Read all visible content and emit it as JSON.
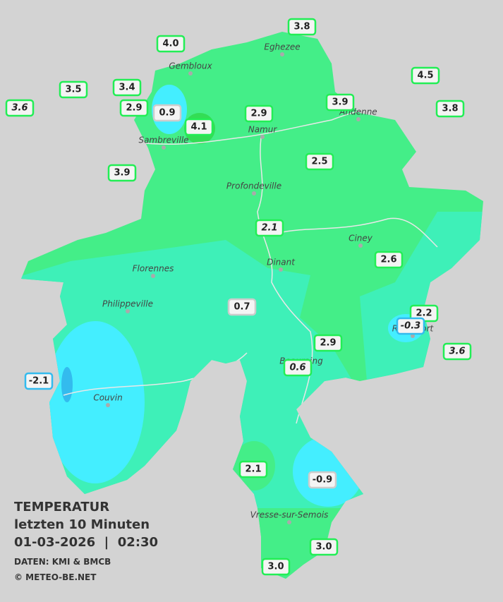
{
  "cities": [
    "Eghezee",
    "Gembloux",
    "Andenne",
    "Namur",
    "Sambreville",
    "Profondeville",
    "Ciney",
    "Dinant",
    "Florennes",
    "Philippeville",
    "Rochefort",
    "Beauraing",
    "Couvin",
    "Vresse-sur-Semois"
  ],
  "stations": [
    "3.8",
    "4.0",
    "4.5",
    "3.5",
    "3.4",
    "3.6",
    "2.9",
    "0.9",
    "4.1",
    "2.9",
    "3.9",
    "3.8",
    "3.9",
    "2.5",
    "2.1",
    "2.6",
    "0.7",
    "2.2",
    "-0.3",
    "2.9",
    "3.6",
    "0.6",
    "-2.1",
    "2.1",
    "-0.9",
    "3.0",
    "3.0"
  ],
  "legend": {
    "title": "TEMPERATUR",
    "subtitle": "letzten 10 Minuten",
    "datetime": "01-03-2026  |  02:30",
    "source": "DATEN: KMI & BMCB",
    "copyright": "© METEO-BE.NET"
  }
}
